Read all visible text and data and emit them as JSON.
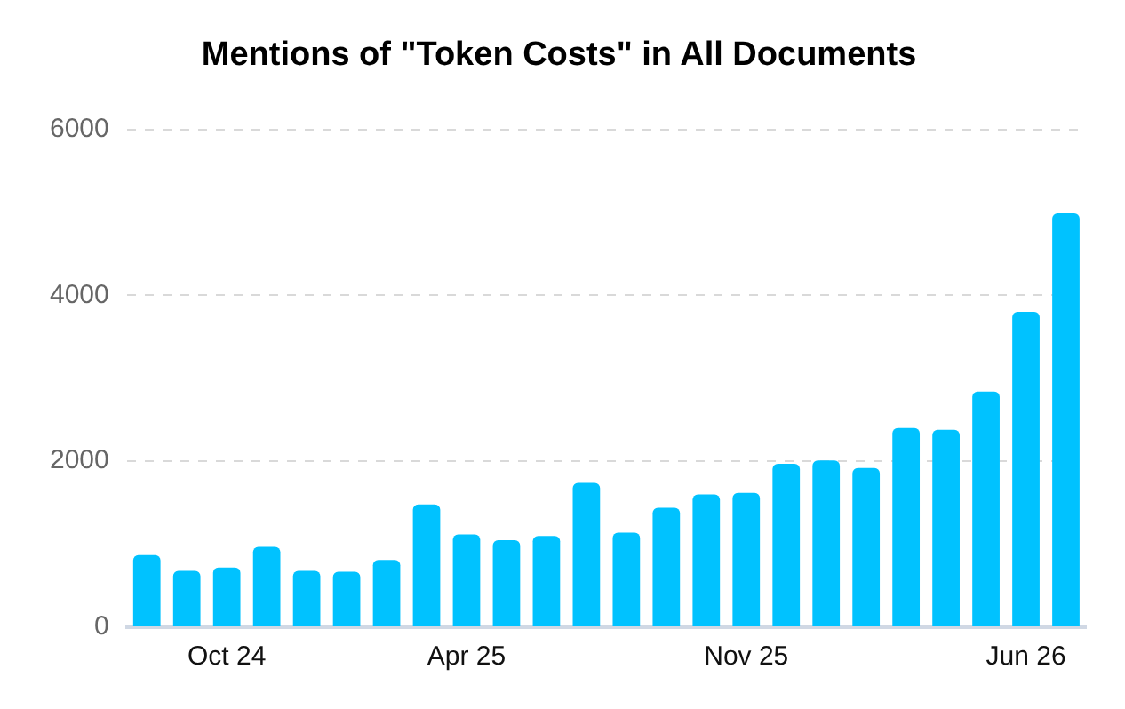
{
  "chart_data": {
    "type": "bar",
    "title": "Mentions of \"Token Costs\" in All Documents",
    "categories": [
      null,
      null,
      "Oct 24",
      null,
      null,
      null,
      null,
      null,
      "Apr 25",
      null,
      null,
      null,
      null,
      null,
      null,
      "Nov 25",
      null,
      null,
      null,
      null,
      null,
      null,
      "Jun 26",
      null
    ],
    "values": [
      870,
      680,
      720,
      970,
      680,
      670,
      810,
      1480,
      1120,
      1050,
      1100,
      1740,
      1140,
      1440,
      1600,
      1620,
      1970,
      2010,
      1920,
      2400,
      2380,
      2840,
      3800,
      4990
    ],
    "color": "#00c2ff",
    "ylim": [
      0,
      6000
    ],
    "yticks": [
      0,
      2000,
      4000,
      6000
    ],
    "grid": "y",
    "legend": false
  }
}
